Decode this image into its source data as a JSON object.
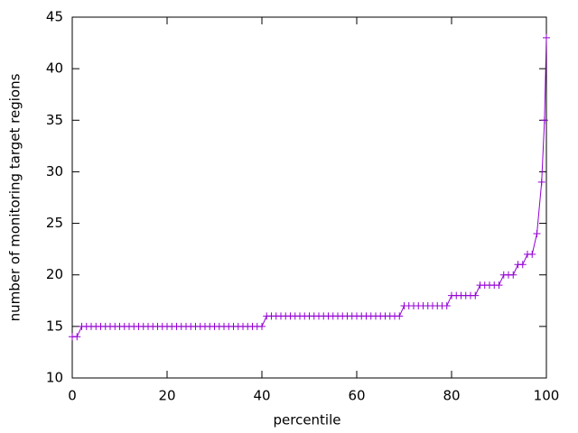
{
  "chart_data": {
    "type": "line",
    "xlabel": "percentile",
    "ylabel": "number of monitoring target regions",
    "x": [
      0,
      1,
      2,
      3,
      4,
      5,
      6,
      7,
      8,
      9,
      10,
      11,
      12,
      13,
      14,
      15,
      16,
      17,
      18,
      19,
      20,
      21,
      22,
      23,
      24,
      25,
      26,
      27,
      28,
      29,
      30,
      31,
      32,
      33,
      34,
      35,
      36,
      37,
      38,
      39,
      40,
      41,
      42,
      43,
      44,
      45,
      46,
      47,
      48,
      49,
      50,
      51,
      52,
      53,
      54,
      55,
      56,
      57,
      58,
      59,
      60,
      61,
      62,
      63,
      64,
      65,
      66,
      67,
      68,
      69,
      70,
      71,
      72,
      73,
      74,
      75,
      76,
      77,
      78,
      79,
      80,
      81,
      82,
      83,
      84,
      85,
      86,
      87,
      88,
      89,
      90,
      91,
      92,
      93,
      94,
      95,
      96,
      97,
      98,
      99,
      99.6,
      100
    ],
    "series": [
      {
        "color": "#9400d3",
        "values": [
          14,
          14,
          15,
          15,
          15,
          15,
          15,
          15,
          15,
          15,
          15,
          15,
          15,
          15,
          15,
          15,
          15,
          15,
          15,
          15,
          15,
          15,
          15,
          15,
          15,
          15,
          15,
          15,
          15,
          15,
          15,
          15,
          15,
          15,
          15,
          15,
          15,
          15,
          15,
          15,
          15,
          16,
          16,
          16,
          16,
          16,
          16,
          16,
          16,
          16,
          16,
          16,
          16,
          16,
          16,
          16,
          16,
          16,
          16,
          16,
          16,
          16,
          16,
          16,
          16,
          16,
          16,
          16,
          16,
          16,
          17,
          17,
          17,
          17,
          17,
          17,
          17,
          17,
          17,
          17,
          18,
          18,
          18,
          18,
          18,
          18,
          19,
          19,
          19,
          19,
          19,
          20,
          20,
          20,
          21,
          21,
          22,
          22,
          24,
          29,
          35,
          43
        ]
      }
    ],
    "xlim": [
      0,
      100
    ],
    "xticks": [
      0,
      20,
      40,
      60,
      80,
      100
    ],
    "ylim": [
      10,
      45
    ],
    "yticks": [
      10,
      15,
      20,
      25,
      30,
      35,
      40,
      45
    ]
  }
}
